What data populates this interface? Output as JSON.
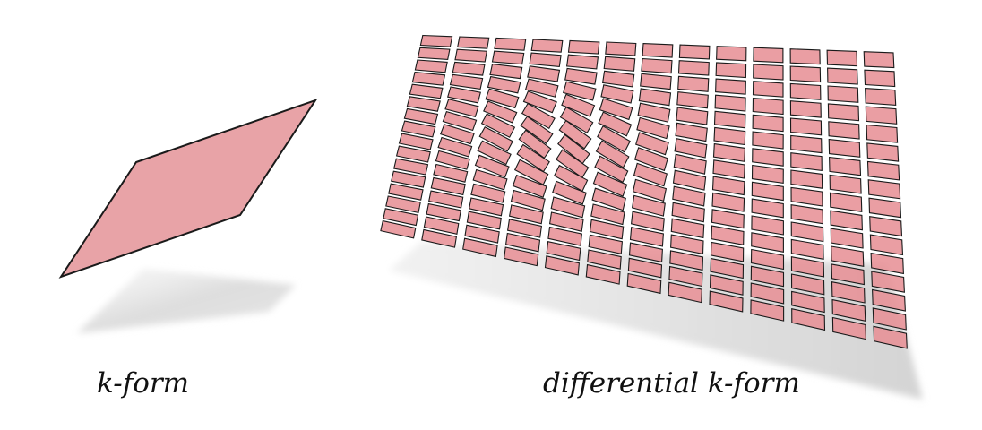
{
  "captions": {
    "left": "k-form",
    "right": "differential k-form"
  },
  "colors": {
    "fill": "#e8a3a7",
    "cell_fill": "#e79196",
    "stroke": "#1a1a1a",
    "shadow": "#d9d9d9"
  },
  "grid": {
    "rows": 16,
    "cols": 13
  }
}
